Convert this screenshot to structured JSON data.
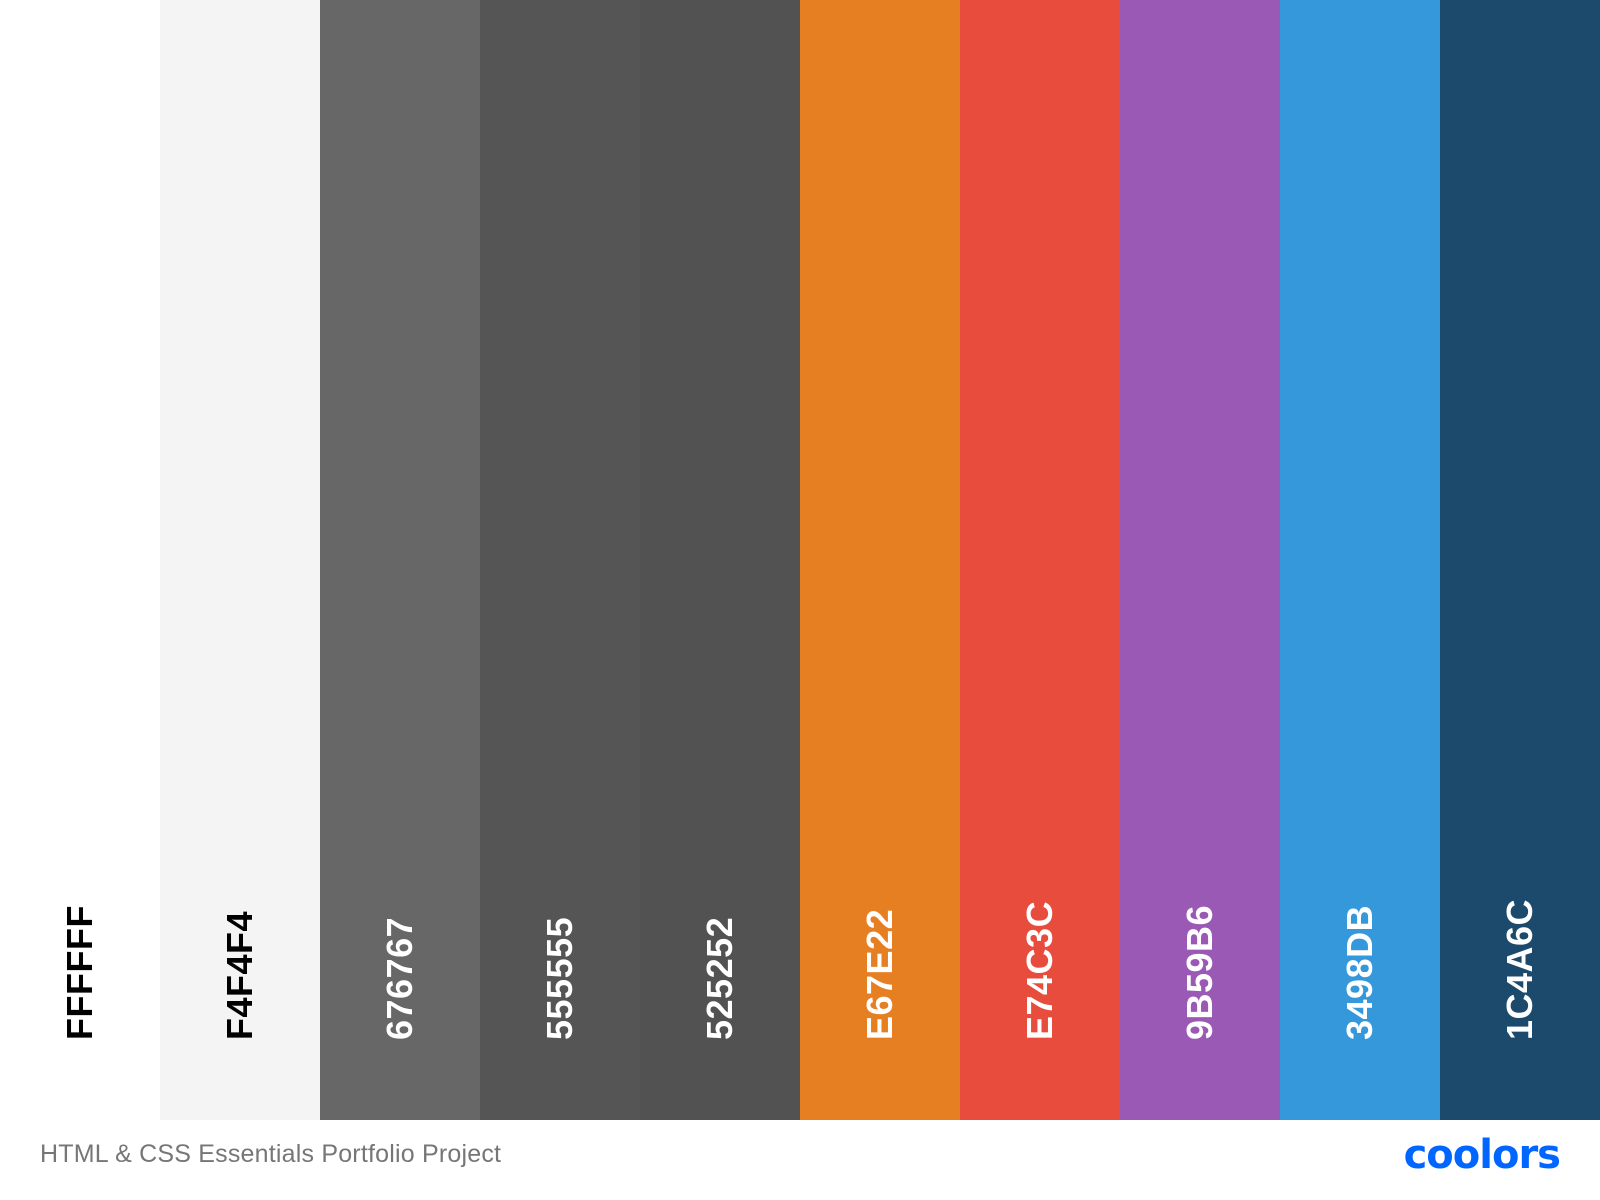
{
  "palette": {
    "swatches": [
      {
        "hex": "FFFFFF",
        "bg": "#FFFFFF",
        "text": "#000000"
      },
      {
        "hex": "F4F4F4",
        "bg": "#F4F4F4",
        "text": "#000000"
      },
      {
        "hex": "676767",
        "bg": "#676767",
        "text": "#FFFFFF"
      },
      {
        "hex": "555555",
        "bg": "#555555",
        "text": "#FFFFFF"
      },
      {
        "hex": "525252",
        "bg": "#525252",
        "text": "#FFFFFF"
      },
      {
        "hex": "E67E22",
        "bg": "#E67E22",
        "text": "#FFFFFF"
      },
      {
        "hex": "E74C3C",
        "bg": "#E74C3C",
        "text": "#FFFFFF"
      },
      {
        "hex": "9B59B6",
        "bg": "#9B59B6",
        "text": "#FFFFFF"
      },
      {
        "hex": "3498DB",
        "bg": "#3498DB",
        "text": "#FFFFFF"
      },
      {
        "hex": "1C4A6C",
        "bg": "#1C4A6C",
        "text": "#FFFFFF"
      }
    ]
  },
  "footer": {
    "project_title": "HTML & CSS Essentials Portfolio Project",
    "brand": "coolors",
    "brand_color": "#0066FF"
  }
}
